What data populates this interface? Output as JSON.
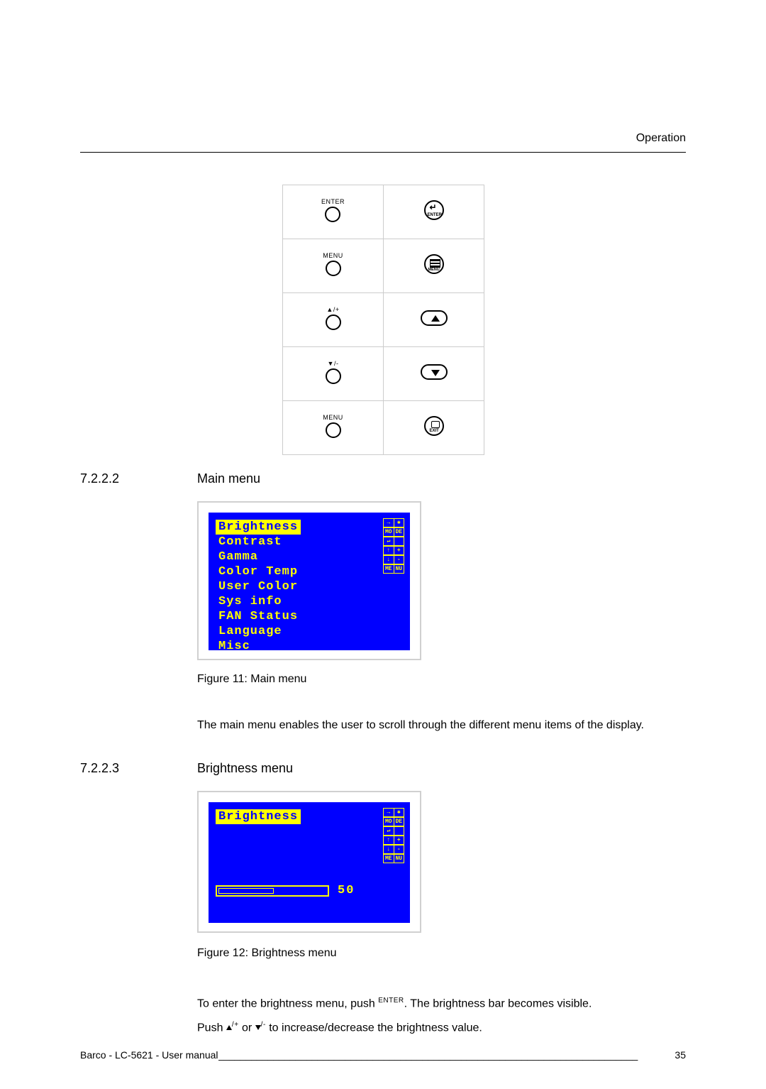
{
  "header": {
    "section": "Operation"
  },
  "button_rows": [
    {
      "panel_label": "ENTER",
      "remote": "enter"
    },
    {
      "panel_label": "MENU",
      "remote": "menu"
    },
    {
      "panel_label": "▲/+",
      "remote": "up"
    },
    {
      "panel_label": "▼/-",
      "remote": "down"
    },
    {
      "panel_label": "MENU",
      "remote": "exit"
    }
  ],
  "sections": {
    "main": {
      "num": "7.2.2.2",
      "title": "Main menu"
    },
    "bri": {
      "num": "7.2.2.3",
      "title": "Brightness menu"
    }
  },
  "osd": {
    "items": [
      "Brightness",
      "Contrast",
      "Gamma",
      "Color Temp",
      "User Color",
      "Sys info",
      "FAN Status",
      "Language",
      "Misc"
    ],
    "selected_index": 0,
    "legend_rows": [
      [
        "→",
        "✱"
      ],
      [
        "MO",
        "DE"
      ],
      [
        "↵",
        ""
      ],
      [
        "↑",
        "+"
      ],
      [
        "↓",
        "-"
      ],
      [
        "ME",
        "NU"
      ]
    ],
    "brightness": {
      "value": "50",
      "percent": 50
    }
  },
  "captions": {
    "fig11": "Figure 11: Main menu",
    "fig12": "Figure 12: Brightness menu"
  },
  "paragraphs": {
    "main": "The main menu enables the user to scroll through the different menu items of the display.",
    "bri1a": "To enter the brightness menu, push ",
    "bri1_btn": "ENTER",
    "bri1b": ". The brightness bar becomes visible.",
    "bri2a": "Push ",
    "bri2_mid": " or ",
    "bri2b": " to increase/decrease the brightness value.",
    "up_sup": "/+",
    "down_sup": "/-"
  },
  "footer": {
    "left": "Barco - LC-5621 - User manual ",
    "page": "35"
  },
  "colors": {
    "osd_bg": "#0000ff",
    "osd_fg": "#ffff00",
    "rule": "#d0d0d0"
  }
}
